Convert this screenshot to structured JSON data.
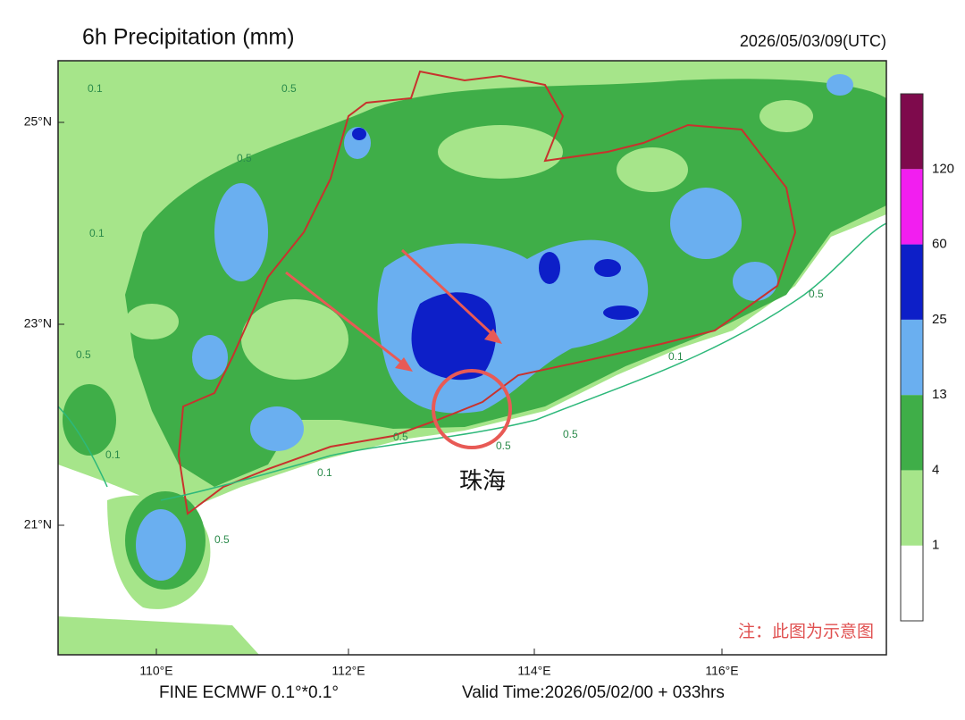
{
  "header": {
    "title": "6h Precipitation (mm)",
    "time": "2026/05/03/09(UTC)"
  },
  "map": {
    "lat_labels": [
      "25°N",
      "23°N",
      "21°N"
    ],
    "lon_labels": [
      "110°E",
      "112°E",
      "114°E",
      "116°E"
    ],
    "contour_labels": [
      "0.1",
      "0.5",
      "0.5",
      "0.1",
      "0.5",
      "0.5",
      "0.1",
      "0.5",
      "0.1",
      "0.5",
      "0.5",
      "0.1",
      "0.5"
    ],
    "annotation": "珠海",
    "note": "注：此图为示意图"
  },
  "colorbar": {
    "labels": [
      "1",
      "4",
      "13",
      "25",
      "60",
      "120"
    ],
    "colors": [
      "#ffffff",
      "#a6e58a",
      "#3fae48",
      "#6aaff0",
      "#0d1fc8",
      "#f21ef0",
      "#7e0a4c"
    ]
  },
  "footer": {
    "left": "FINE ECMWF 0.1°*0.1°",
    "right": "Valid Time:2026/05/02/00 + 033hrs"
  }
}
